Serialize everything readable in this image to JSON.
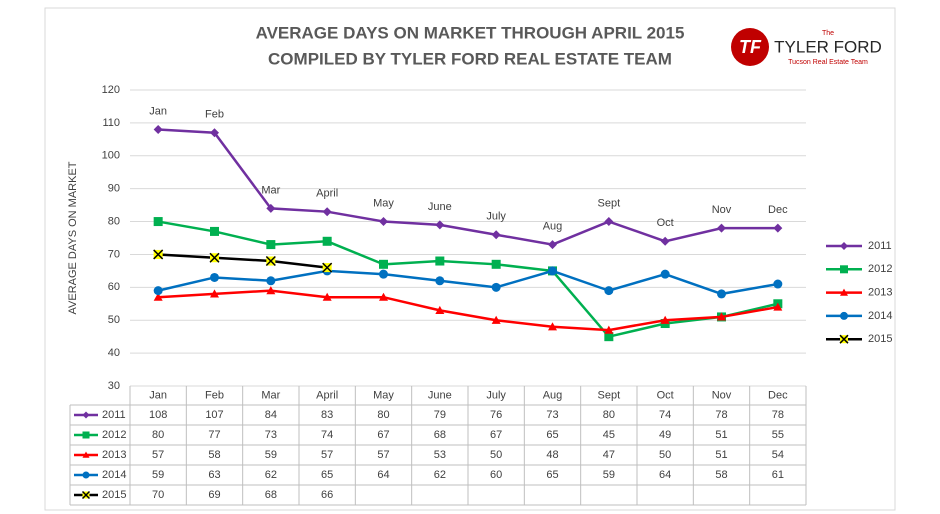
{
  "chart_data": {
    "type": "line",
    "title": [
      "AVERAGE DAYS ON MARKET THROUGH APRIL 2015",
      "COMPILED BY TYLER FORD REAL ESTATE TEAM"
    ],
    "y_label": "AVERAGE DAYS ON MARKET",
    "categories": [
      "Jan",
      "Feb",
      "Mar",
      "April",
      "May",
      "June",
      "July",
      "Aug",
      "Sept",
      "Oct",
      "Nov",
      "Dec"
    ],
    "ylim": [
      30,
      120
    ],
    "yticks": [
      30,
      40,
      50,
      60,
      70,
      80,
      90,
      100,
      110,
      120
    ],
    "grid": true,
    "legend": "right",
    "series": [
      {
        "name": "2011",
        "color": "#7030a0",
        "marker": "diamond",
        "values": [
          108,
          107,
          84,
          83,
          80,
          79,
          76,
          73,
          80,
          74,
          78,
          78
        ]
      },
      {
        "name": "2012",
        "color": "#00b050",
        "marker": "square",
        "values": [
          80,
          77,
          73,
          74,
          67,
          68,
          67,
          65,
          45,
          49,
          51,
          55
        ]
      },
      {
        "name": "2013",
        "color": "#ff0000",
        "marker": "triangle",
        "values": [
          57,
          58,
          59,
          57,
          57,
          53,
          50,
          48,
          47,
          50,
          51,
          54
        ]
      },
      {
        "name": "2014",
        "color": "#0070c0",
        "marker": "circle",
        "values": [
          59,
          63,
          62,
          65,
          64,
          62,
          60,
          65,
          59,
          64,
          58,
          61
        ]
      },
      {
        "name": "2015",
        "color": "#000000",
        "marker": "x",
        "marker_color": "#ffff00",
        "values": [
          70,
          69,
          68,
          66,
          null,
          null,
          null,
          null,
          null,
          null,
          null,
          null
        ]
      }
    ]
  },
  "logo": {
    "mark": "TF",
    "small": "The",
    "name": "TYLER FORD",
    "tagline": "Tucson Real Estate Team"
  }
}
